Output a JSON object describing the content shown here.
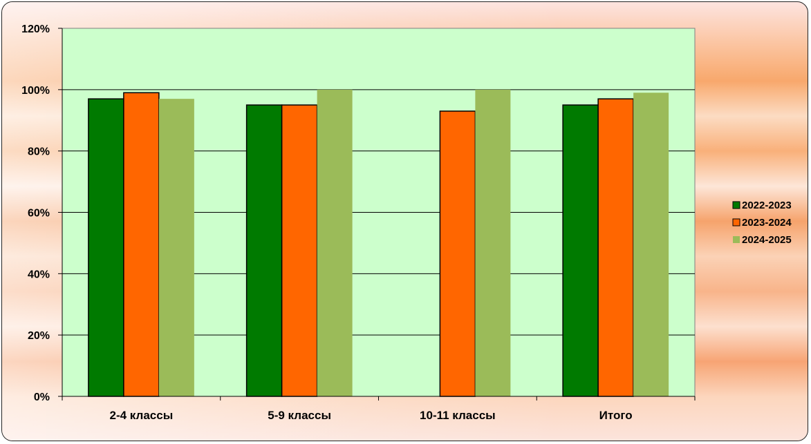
{
  "chart_data": {
    "type": "bar",
    "categories": [
      "2-4 классы",
      "5-9 классы",
      "10-11 классы",
      "Итого"
    ],
    "series": [
      {
        "name": "2022-2023",
        "color": "#007a00",
        "values": [
          97,
          95,
          null,
          95
        ]
      },
      {
        "name": "2023-2024",
        "color": "#ff6600",
        "values": [
          99,
          95,
          93,
          97
        ]
      },
      {
        "name": "2024-2025",
        "color": "#9bbb59",
        "values": [
          97,
          100,
          100,
          99
        ]
      }
    ],
    "y_ticks": [
      "0%",
      "20%",
      "40%",
      "60%",
      "80%",
      "100%",
      "120%"
    ],
    "ylim": [
      0,
      120
    ],
    "y_unit": "%",
    "grid": true,
    "legend_position": "right",
    "plot_background": "#ccffcc",
    "title": "",
    "xlabel": "",
    "ylabel": ""
  }
}
